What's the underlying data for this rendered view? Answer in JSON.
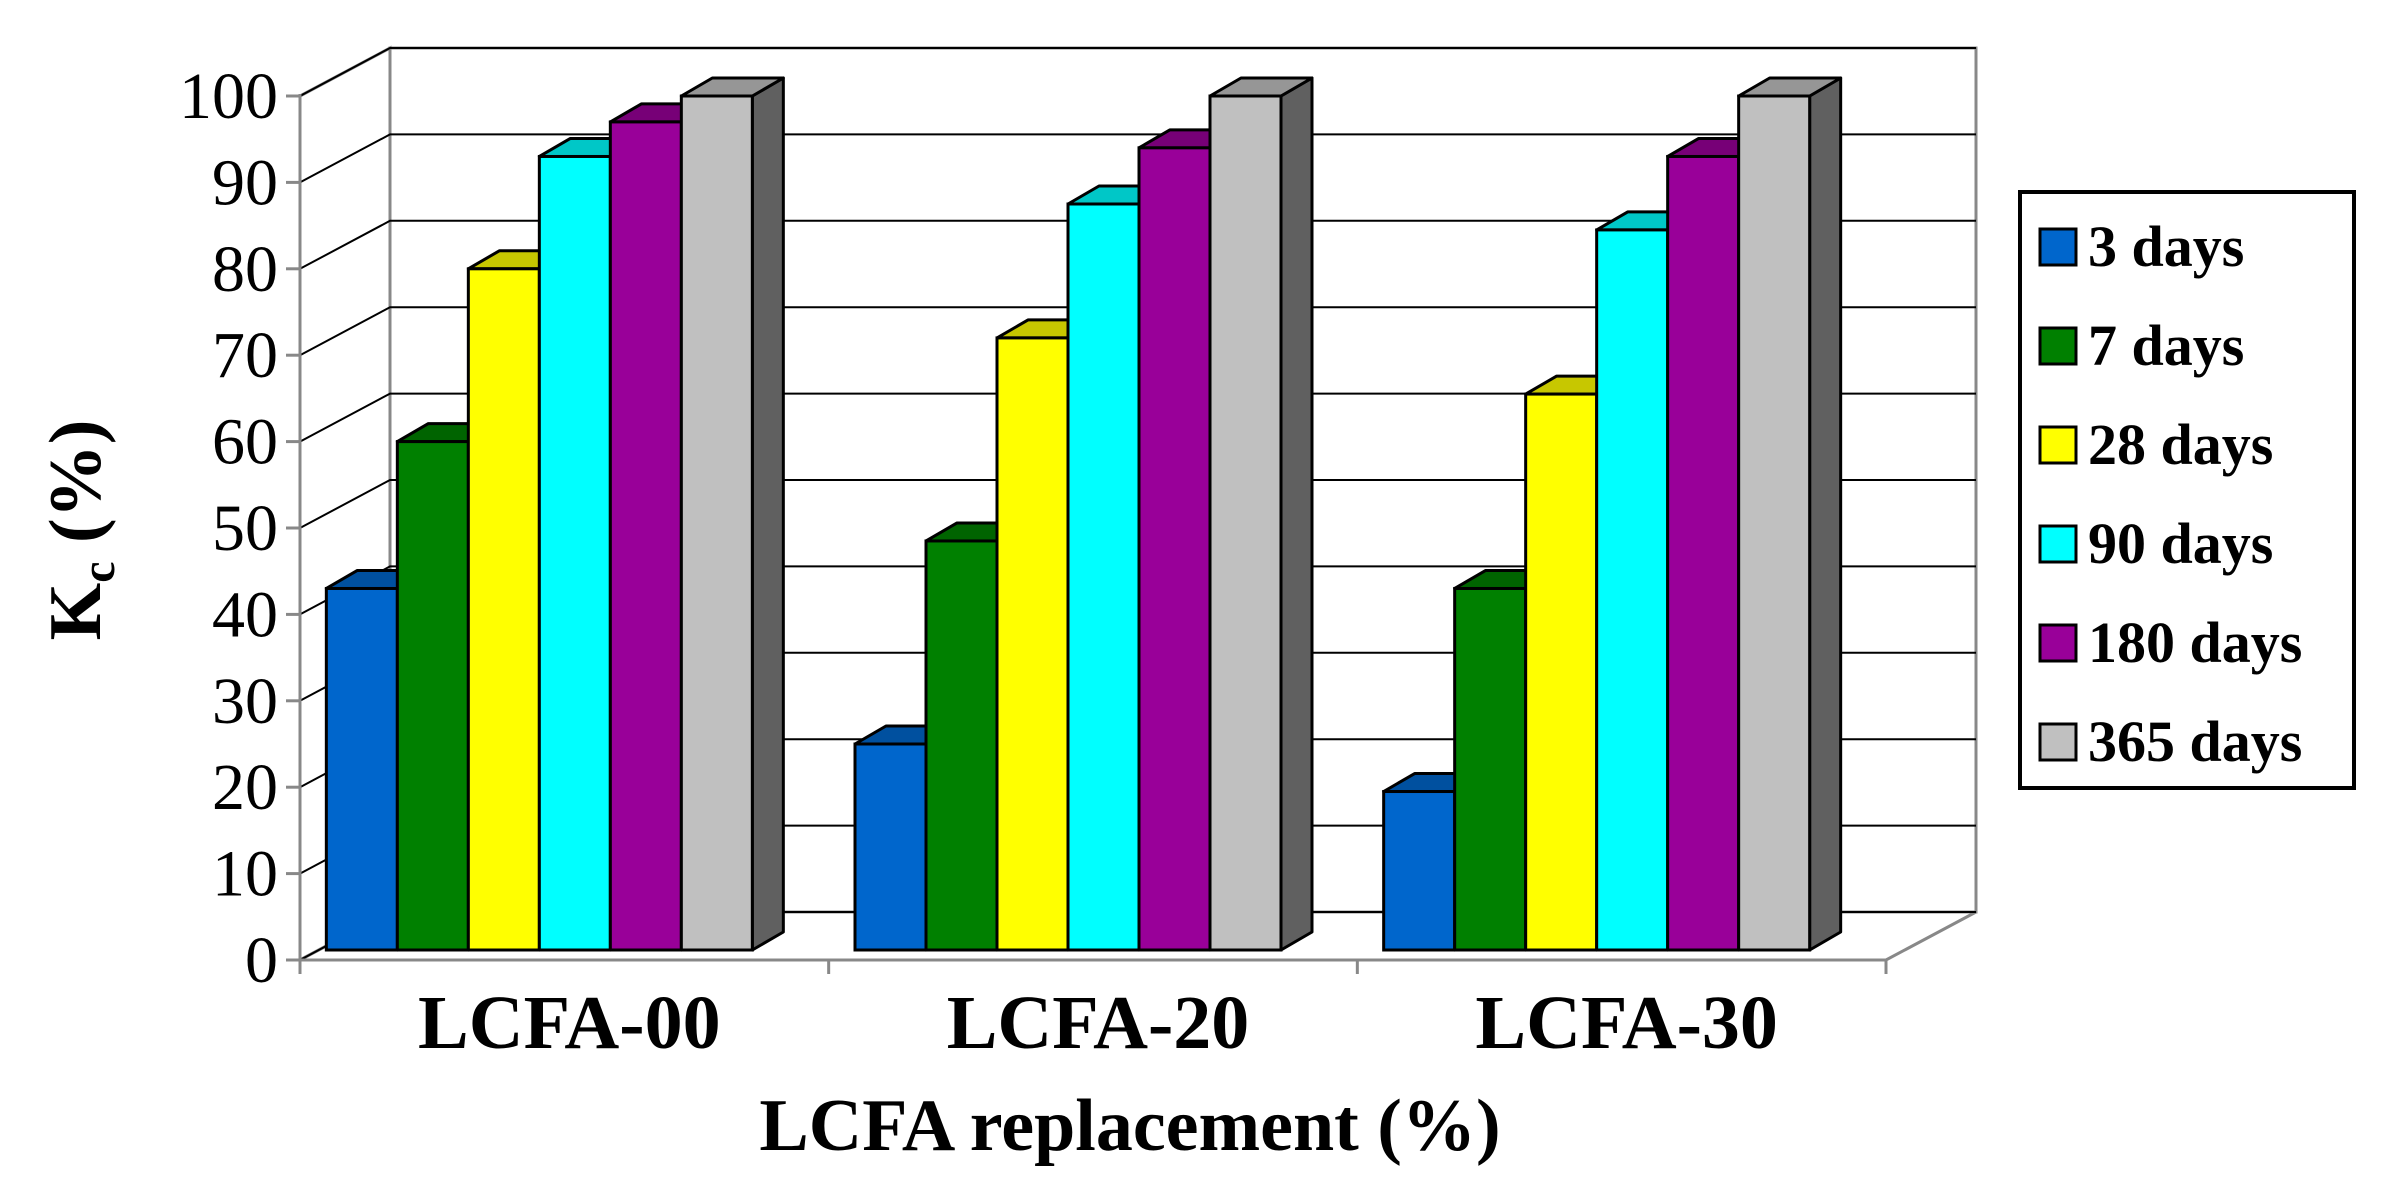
{
  "chart_data": {
    "type": "bar",
    "categories": [
      "LCFA-00",
      "LCFA-20",
      "LCFA-30"
    ],
    "series": [
      {
        "name": "3 days",
        "color": "#0066CC",
        "values": [
          43,
          25,
          19.5
        ]
      },
      {
        "name": "7 days",
        "color": "#008000",
        "values": [
          60,
          48.5,
          43
        ]
      },
      {
        "name": "28 days",
        "color": "#FFFF00",
        "values": [
          80,
          72,
          65.5
        ]
      },
      {
        "name": "90 days",
        "color": "#00FFFF",
        "values": [
          93,
          87.5,
          84.5
        ]
      },
      {
        "name": "180 days",
        "color": "#990099",
        "values": [
          97,
          94,
          93
        ]
      },
      {
        "name": "365 days",
        "color": "#C0C0C0",
        "values": [
          100,
          100,
          100
        ]
      }
    ],
    "xlabel": "LCFA replacement (%)",
    "ylabel_main": "K",
    "ylabel_sub": "c",
    "ylabel_rest": " (%)",
    "ylim": [
      0,
      100
    ],
    "yticks": [
      0,
      10,
      20,
      30,
      40,
      50,
      60,
      70,
      80,
      90,
      100
    ],
    "grid": true,
    "legend": "right",
    "style": "3d-clustered-column"
  }
}
